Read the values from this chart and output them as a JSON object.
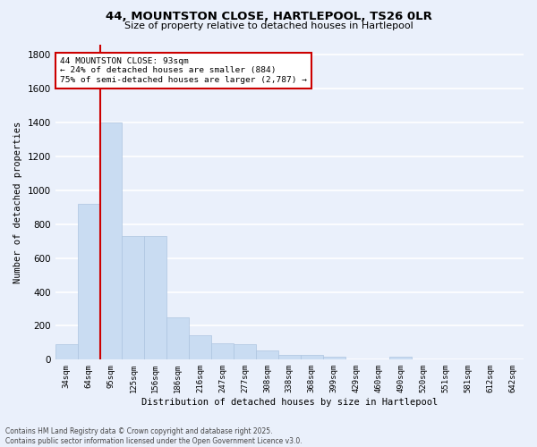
{
  "title_line1": "44, MOUNTSTON CLOSE, HARTLEPOOL, TS26 0LR",
  "title_line2": "Size of property relative to detached houses in Hartlepool",
  "xlabel": "Distribution of detached houses by size in Hartlepool",
  "ylabel": "Number of detached properties",
  "categories": [
    "34sqm",
    "64sqm",
    "95sqm",
    "125sqm",
    "156sqm",
    "186sqm",
    "216sqm",
    "247sqm",
    "277sqm",
    "308sqm",
    "338sqm",
    "368sqm",
    "399sqm",
    "429sqm",
    "460sqm",
    "490sqm",
    "520sqm",
    "551sqm",
    "581sqm",
    "612sqm",
    "642sqm"
  ],
  "values": [
    90,
    920,
    1400,
    730,
    730,
    250,
    145,
    95,
    90,
    55,
    30,
    30,
    15,
    0,
    0,
    20,
    0,
    0,
    0,
    0,
    0
  ],
  "bar_color": "#c9dcf2",
  "bar_edgecolor": "#adc4e0",
  "redline_index": 2,
  "annotation_text_line1": "44 MOUNTSTON CLOSE: 93sqm",
  "annotation_text_line2": "← 24% of detached houses are smaller (884)",
  "annotation_text_line3": "75% of semi-detached houses are larger (2,787) →",
  "annotation_box_color": "#ffffff",
  "annotation_box_edgecolor": "#cc0000",
  "redline_color": "#cc0000",
  "ylim": [
    0,
    1860
  ],
  "yticks": [
    0,
    200,
    400,
    600,
    800,
    1000,
    1200,
    1400,
    1600,
    1800
  ],
  "bg_color": "#eaf0fb",
  "grid_color": "#ffffff",
  "title_fontsize": 9.5,
  "subtitle_fontsize": 8,
  "footer_line1": "Contains HM Land Registry data © Crown copyright and database right 2025.",
  "footer_line2": "Contains public sector information licensed under the Open Government Licence v3.0."
}
